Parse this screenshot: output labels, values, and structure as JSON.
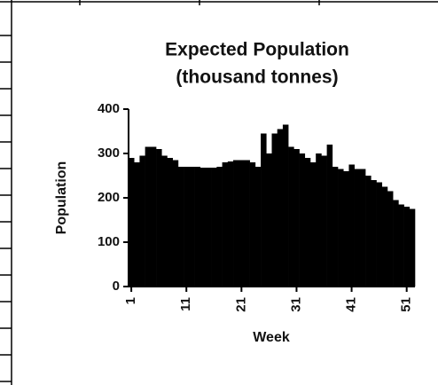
{
  "chart_data": {
    "type": "bar",
    "title": [
      "Expected Population",
      "(thousand tonnes)"
    ],
    "x_label": "Week",
    "y_label": "Population",
    "x": [
      1,
      2,
      3,
      4,
      5,
      6,
      7,
      8,
      9,
      10,
      11,
      12,
      13,
      14,
      15,
      16,
      17,
      18,
      19,
      20,
      21,
      22,
      23,
      24,
      25,
      26,
      27,
      28,
      29,
      30,
      31,
      32,
      33,
      34,
      35,
      36,
      37,
      38,
      39,
      40,
      41,
      42,
      43,
      44,
      45,
      46,
      47,
      48,
      49,
      50,
      51,
      52
    ],
    "values": [
      290,
      280,
      295,
      315,
      315,
      310,
      295,
      290,
      285,
      270,
      270,
      270,
      270,
      268,
      268,
      268,
      270,
      280,
      282,
      285,
      285,
      285,
      280,
      270,
      345,
      300,
      345,
      355,
      365,
      315,
      310,
      300,
      290,
      280,
      300,
      295,
      320,
      270,
      265,
      260,
      275,
      265,
      265,
      250,
      240,
      235,
      225,
      215,
      195,
      185,
      180,
      175
    ],
    "color": "#000000",
    "xlim": [
      0.5,
      52.5
    ],
    "xticks": [
      1,
      11,
      21,
      31,
      41,
      51
    ],
    "ylim": [
      0,
      400
    ],
    "yticks": [
      0,
      100,
      200,
      300,
      400
    ]
  }
}
